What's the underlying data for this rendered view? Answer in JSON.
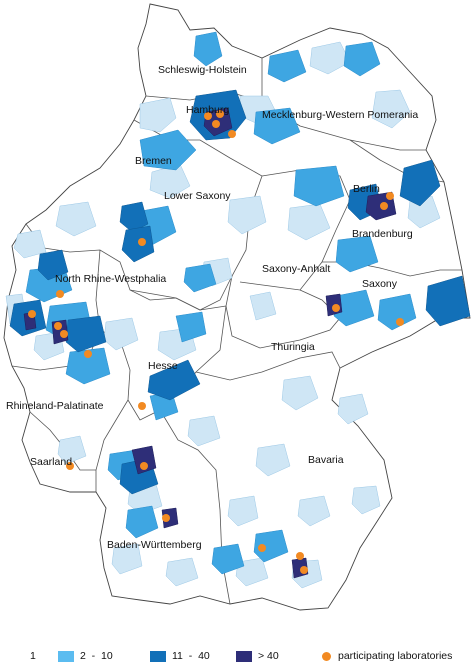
{
  "colors": {
    "bin_1": "#ffffff",
    "bin_2_10": "#cfe6f5",
    "bin_11_40": "#3ea6e2",
    "bin_over_40": "#1270b8",
    "bin_highest": "#2e2e78",
    "laboratory": "#f28a22",
    "border": "#444444"
  },
  "map": {
    "state_labels": {
      "schleswig_holstein": "Schleswig-Holstein",
      "hamburg": "Hamburg",
      "mecklenburg": "Mecklenburg-Western Pomerania",
      "bremen": "Bremen",
      "lower_saxony": "Lower Saxony",
      "berlin": "Berlin",
      "brandenburg": "Brandenburg",
      "saxony_anhalt": "Saxony-Anhalt",
      "nrw": "North Rhine-Westphalia",
      "saxony": "Saxony",
      "thuringia": "Thuringia",
      "hesse": "Hesse",
      "rhineland_palatinate": "Rhineland-Palatinate",
      "saarland": "Saarland",
      "bavaria": "Bavaria",
      "baden_wurttemberg": "Baden-Württemberg"
    }
  },
  "legend": {
    "bin_1": "1",
    "bin_2_10": "2  -  10",
    "bin_11_40": "11  -  40",
    "bin_over_40": "> 40",
    "laboratories": "participating laboratories"
  }
}
